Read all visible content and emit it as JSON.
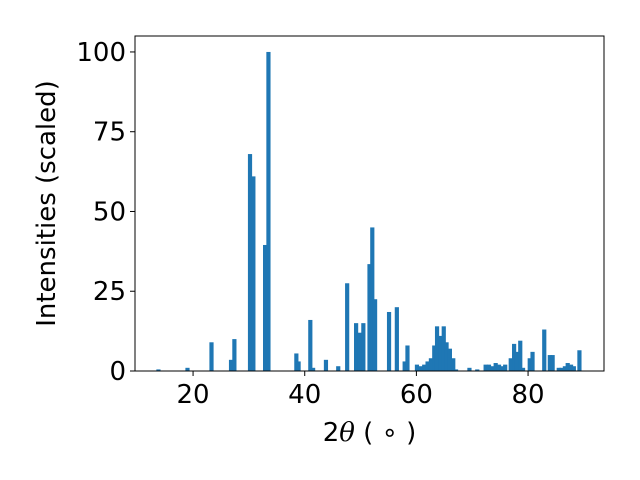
{
  "chart_data": {
    "type": "bar",
    "xlabel_prefix": "2",
    "xlabel_symbol": "θ",
    "xlabel_suffix": " ( ∘ )",
    "ylabel": "Intensities (scaled)",
    "xlim": [
      9.6,
      93.6
    ],
    "ylim": [
      0,
      105
    ],
    "xticks": [
      20,
      40,
      60,
      80
    ],
    "yticks": [
      0,
      25,
      50,
      75,
      100
    ],
    "bar_width": 0.75,
    "grid": false,
    "bar_color": "#1f77b4",
    "x": [
      13.8,
      19.0,
      23.3,
      26.8,
      27.4,
      30.2,
      30.8,
      32.9,
      33.5,
      38.5,
      38.9,
      41.0,
      41.5,
      43.8,
      46.0,
      47.6,
      49.2,
      49.8,
      50.5,
      51.6,
      52.1,
      52.6,
      55.1,
      56.5,
      57.9,
      58.4,
      60.1,
      60.8,
      61.4,
      62.0,
      62.6,
      63.2,
      63.7,
      64.3,
      64.9,
      65.4,
      66.0,
      66.6,
      67.1,
      69.5,
      70.9,
      72.4,
      73.0,
      73.6,
      74.2,
      74.8,
      75.3,
      75.9,
      76.9,
      77.5,
      78.0,
      78.6,
      79.1,
      80.3,
      80.8,
      82.9,
      83.9,
      84.4,
      85.5,
      86.0,
      86.6,
      87.1,
      87.7,
      88.2,
      89.2
    ],
    "values": [
      0.5,
      1.0,
      9.0,
      3.5,
      10.0,
      68.0,
      61.0,
      39.5,
      100.0,
      5.5,
      3.0,
      16.0,
      1.0,
      3.5,
      1.5,
      27.5,
      15.0,
      12.0,
      15.0,
      33.5,
      45.0,
      22.5,
      18.5,
      20.0,
      3.0,
      8.0,
      2.0,
      1.5,
      2.0,
      3.0,
      4.0,
      8.0,
      14.0,
      11.0,
      14.0,
      9.0,
      7.0,
      4.0,
      0.5,
      1.0,
      0.5,
      2.0,
      2.0,
      1.5,
      2.5,
      2.0,
      1.5,
      2.0,
      4.0,
      8.5,
      6.0,
      9.5,
      1.0,
      4.0,
      6.0,
      13.0,
      5.0,
      5.0,
      1.0,
      1.0,
      1.5,
      2.5,
      2.0,
      1.5,
      6.5
    ]
  }
}
